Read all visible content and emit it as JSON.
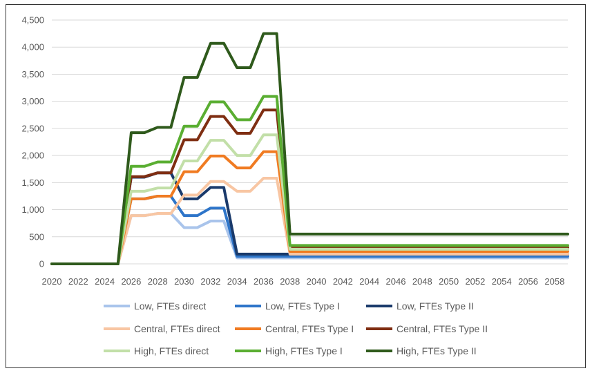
{
  "chart_data": {
    "type": "line",
    "title": "",
    "xlabel": "",
    "ylabel": "",
    "ylim": [
      0,
      4500
    ],
    "y_ticks": [
      0,
      500,
      1000,
      1500,
      2000,
      2500,
      3000,
      3500,
      4000,
      4500
    ],
    "y_tick_labels": [
      "0",
      "500",
      "1,000",
      "1,500",
      "2,000",
      "2,500",
      "3,000",
      "3,500",
      "4,000",
      "4,500"
    ],
    "x_tick_labels": [
      "2020",
      "2022",
      "2024",
      "2026",
      "2028",
      "2030",
      "2032",
      "2034",
      "2036",
      "2038",
      "2040",
      "2042",
      "2044",
      "2046",
      "2048",
      "2050",
      "2052",
      "2054",
      "2056",
      "2058"
    ],
    "grid": true,
    "legend_position": "bottom",
    "x": [
      2020,
      2021,
      2022,
      2023,
      2024,
      2025,
      2026,
      2027,
      2028,
      2029,
      2030,
      2031,
      2032,
      2033,
      2034,
      2035,
      2036,
      2037,
      2038,
      2039,
      2040,
      2041,
      2042,
      2043,
      2044,
      2045,
      2046,
      2047,
      2048,
      2049,
      2050,
      2051,
      2052,
      2053,
      2054,
      2055,
      2056,
      2057,
      2058,
      2059
    ],
    "series": [
      {
        "name": "Low, FTEs direct",
        "color": "#a9c4eb",
        "values": [
          0,
          0,
          0,
          0,
          0,
          0,
          890,
          890,
          930,
          930,
          670,
          670,
          790,
          790,
          110,
          110,
          110,
          110,
          110,
          110,
          110,
          110,
          110,
          110,
          110,
          110,
          110,
          110,
          110,
          110,
          110,
          110,
          110,
          110,
          110,
          110,
          110,
          110,
          110,
          110
        ]
      },
      {
        "name": "Low, FTEs Type I",
        "color": "#2e75c9",
        "values": [
          0,
          0,
          0,
          0,
          0,
          0,
          1200,
          1200,
          1250,
          1250,
          890,
          890,
          1030,
          1030,
          140,
          140,
          140,
          140,
          140,
          140,
          140,
          140,
          140,
          140,
          140,
          140,
          140,
          140,
          140,
          140,
          140,
          140,
          140,
          140,
          140,
          140,
          140,
          140,
          140,
          140
        ]
      },
      {
        "name": "Low, FTEs Type II",
        "color": "#1a3a6b",
        "values": [
          0,
          0,
          0,
          0,
          0,
          0,
          1600,
          1600,
          1680,
          1680,
          1200,
          1200,
          1410,
          1410,
          180,
          180,
          180,
          180,
          180,
          180,
          180,
          180,
          180,
          180,
          180,
          180,
          180,
          180,
          180,
          180,
          180,
          180,
          180,
          180,
          180,
          180,
          180,
          180,
          180,
          180
        ]
      },
      {
        "name": "Central, FTEs direct",
        "color": "#f8c6a3",
        "values": [
          0,
          0,
          0,
          0,
          0,
          0,
          890,
          890,
          930,
          930,
          1270,
          1270,
          1520,
          1520,
          1340,
          1340,
          1580,
          1580,
          180,
          180,
          180,
          180,
          180,
          180,
          180,
          180,
          180,
          180,
          180,
          180,
          180,
          180,
          180,
          180,
          180,
          180,
          180,
          180,
          180,
          180
        ]
      },
      {
        "name": "Central, FTEs Type I",
        "color": "#f07b22",
        "values": [
          0,
          0,
          0,
          0,
          0,
          0,
          1200,
          1200,
          1250,
          1250,
          1700,
          1700,
          1990,
          1990,
          1770,
          1770,
          2070,
          2070,
          230,
          230,
          230,
          230,
          230,
          230,
          230,
          230,
          230,
          230,
          230,
          230,
          230,
          230,
          230,
          230,
          230,
          230,
          230,
          230,
          230,
          230
        ]
      },
      {
        "name": "Central, FTEs Type II",
        "color": "#7f2e12",
        "values": [
          0,
          0,
          0,
          0,
          0,
          0,
          1610,
          1610,
          1680,
          1680,
          2290,
          2290,
          2720,
          2720,
          2410,
          2410,
          2840,
          2840,
          300,
          300,
          300,
          300,
          300,
          300,
          300,
          300,
          300,
          300,
          300,
          300,
          300,
          300,
          300,
          300,
          300,
          300,
          300,
          300,
          300,
          300
        ]
      },
      {
        "name": "High, FTEs direct",
        "color": "#c2dfa8",
        "values": [
          0,
          0,
          0,
          0,
          0,
          0,
          1340,
          1340,
          1400,
          1400,
          1900,
          1900,
          2280,
          2280,
          2000,
          2000,
          2380,
          2380,
          270,
          270,
          270,
          270,
          270,
          270,
          270,
          270,
          270,
          270,
          270,
          270,
          270,
          270,
          270,
          270,
          270,
          270,
          270,
          270,
          270,
          270
        ]
      },
      {
        "name": "High, FTEs Type I",
        "color": "#5aae32",
        "values": [
          0,
          0,
          0,
          0,
          0,
          0,
          1800,
          1800,
          1880,
          1880,
          2540,
          2540,
          2990,
          2990,
          2660,
          2660,
          3090,
          3090,
          340,
          340,
          340,
          340,
          340,
          340,
          340,
          340,
          340,
          340,
          340,
          340,
          340,
          340,
          340,
          340,
          340,
          340,
          340,
          340,
          340,
          340
        ]
      },
      {
        "name": "High, FTEs Type II",
        "color": "#2f5a1c",
        "values": [
          0,
          0,
          0,
          0,
          0,
          0,
          2420,
          2420,
          2520,
          2520,
          3440,
          3440,
          4070,
          4070,
          3620,
          3620,
          4250,
          4250,
          550,
          550,
          550,
          550,
          550,
          550,
          550,
          550,
          550,
          550,
          550,
          550,
          550,
          550,
          550,
          550,
          550,
          550,
          550,
          550,
          550,
          550
        ]
      }
    ]
  }
}
